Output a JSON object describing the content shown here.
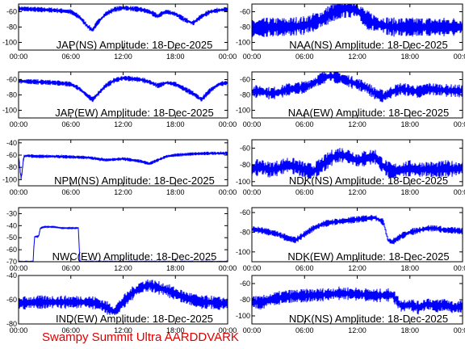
{
  "footer": "Swampy Summit Ultra AARDDVARK",
  "colors": {
    "trace": "#0000ff",
    "footer": "#e00000",
    "axis": "#000000"
  },
  "x_ticks": [
    "00:00",
    "06:00",
    "12:00",
    "18:00",
    "00:00"
  ],
  "chart_data": [
    {
      "type": "line",
      "title": "JAP(NS) Amplitude: 18-Dec-2025",
      "ylim": [
        -110,
        -50
      ],
      "yticks": [
        -60,
        -80,
        -100
      ],
      "series": [
        {
          "x_hours": [
            0,
            2,
            4,
            6,
            7,
            8,
            8.5,
            9,
            10,
            11,
            12,
            13,
            14,
            15,
            16,
            16.5,
            17,
            18,
            19,
            20,
            21,
            22,
            23,
            24
          ],
          "values": [
            -56,
            -57,
            -58,
            -60,
            -67,
            -80,
            -84,
            -75,
            -63,
            -57,
            -55,
            -56,
            -57,
            -60,
            -66,
            -62,
            -60,
            -63,
            -70,
            -75,
            -66,
            -60,
            -58,
            -57
          ]
        }
      ]
    },
    {
      "type": "line",
      "title": "NAA(NS) Amplitude: 18-Dec-2025",
      "ylim": [
        -110,
        -50
      ],
      "yticks": [
        -60,
        -80,
        -100
      ],
      "series": [
        {
          "x_hours": [
            0,
            2,
            4,
            6,
            8,
            9,
            10,
            11,
            12,
            13,
            14,
            15,
            16,
            17,
            18,
            20,
            22,
            24
          ],
          "values": [
            -82,
            -80,
            -80,
            -78,
            -70,
            -62,
            -57,
            -55,
            -58,
            -70,
            -75,
            -78,
            -80,
            -80,
            -80,
            -80,
            -80,
            -80
          ]
        }
      ]
    },
    {
      "type": "line",
      "title": "JAP(EW) Amplitude: 18-Dec-2025",
      "ylim": [
        -110,
        -50
      ],
      "yticks": [
        -60,
        -80,
        -100
      ],
      "series": [
        {
          "x_hours": [
            0,
            2,
            4,
            6,
            7,
            8,
            8.5,
            9,
            10,
            11,
            12,
            13,
            14,
            15,
            16,
            17,
            18,
            19,
            20,
            21,
            22,
            23,
            24
          ],
          "values": [
            -62,
            -63,
            -64,
            -66,
            -72,
            -82,
            -86,
            -80,
            -68,
            -61,
            -58,
            -59,
            -60,
            -63,
            -68,
            -64,
            -66,
            -72,
            -78,
            -86,
            -74,
            -66,
            -64
          ]
        }
      ]
    },
    {
      "type": "line",
      "title": "NAA(EW) Amplitude: 18-Dec-2025",
      "ylim": [
        -110,
        -50
      ],
      "yticks": [
        -60,
        -80,
        -100
      ],
      "series": [
        {
          "x_hours": [
            0,
            1,
            2,
            3,
            4,
            6,
            7,
            8,
            9,
            10,
            11,
            12,
            13,
            14,
            15,
            16,
            17,
            18,
            19,
            20,
            22,
            24
          ],
          "values": [
            -76,
            -75,
            -78,
            -77,
            -73,
            -70,
            -65,
            -58,
            -55,
            -58,
            -62,
            -66,
            -70,
            -78,
            -82,
            -76,
            -72,
            -74,
            -76,
            -72,
            -74,
            -75
          ]
        }
      ]
    },
    {
      "type": "line",
      "title": "NPM(NS) Amplitude: 18-Dec-2025",
      "ylim": [
        -110,
        -35
      ],
      "yticks": [
        -40,
        -60,
        -80,
        -100
      ],
      "series": [
        {
          "x_hours": [
            0,
            0.3,
            0.6,
            1,
            2,
            4,
            6,
            8,
            9,
            10,
            12,
            14,
            15,
            16,
            17,
            18,
            20,
            22,
            24
          ],
          "values": [
            -62,
            -100,
            -62,
            -61,
            -62,
            -62,
            -63,
            -64,
            -66,
            -68,
            -66,
            -70,
            -74,
            -68,
            -62,
            -60,
            -58,
            -57,
            -57
          ]
        }
      ]
    },
    {
      "type": "line",
      "title": "NDK(NS) Amplitude: 18-Dec-2025",
      "ylim": [
        -105,
        -50
      ],
      "yticks": [
        -60,
        -80,
        -100
      ],
      "series": [
        {
          "x_hours": [
            0,
            1,
            2,
            3,
            4,
            5,
            6,
            7,
            8,
            9,
            10,
            11,
            12,
            13,
            14,
            15,
            16,
            17,
            18,
            19,
            20,
            21,
            22,
            23,
            24
          ],
          "values": [
            -85,
            -82,
            -86,
            -84,
            -80,
            -82,
            -86,
            -88,
            -80,
            -72,
            -68,
            -70,
            -75,
            -72,
            -70,
            -82,
            -88,
            -86,
            -84,
            -86,
            -85,
            -86,
            -84,
            -85,
            -84
          ]
        }
      ]
    },
    {
      "type": "line",
      "title": "NWC(EW) Amplitude: 18-Dec-2025",
      "ylim": [
        -70,
        -25
      ],
      "yticks": [
        -30,
        -40,
        -50,
        -60,
        -70
      ],
      "series": [
        {
          "x_hours": [
            0,
            1.7,
            1.8,
            2.3,
            2.5,
            3,
            4,
            5,
            6,
            6.9,
            7,
            8,
            12,
            18,
            24
          ],
          "values": [
            -70,
            -70,
            -49,
            -49,
            -42,
            -41,
            -41,
            -42,
            -42,
            -42,
            -70,
            -70,
            -70,
            -70,
            -70
          ]
        }
      ]
    },
    {
      "type": "line",
      "title": "NDK(EW) Amplitude: 18-Dec-2025",
      "ylim": [
        -110,
        -55
      ],
      "yticks": [
        -60,
        -80,
        -100
      ],
      "series": [
        {
          "x_hours": [
            0,
            1,
            2,
            3,
            4,
            5,
            6,
            7,
            8,
            9,
            10,
            11,
            12,
            13,
            14,
            15,
            15.5,
            16,
            17,
            18,
            19,
            20,
            21,
            22,
            23,
            24
          ],
          "values": [
            -77,
            -78,
            -80,
            -82,
            -86,
            -88,
            -82,
            -76,
            -72,
            -70,
            -69,
            -68,
            -67,
            -66,
            -65,
            -70,
            -88,
            -90,
            -84,
            -80,
            -78,
            -76,
            -76,
            -78,
            -78,
            -79
          ]
        }
      ]
    },
    {
      "type": "line",
      "title": "IND(EW) Amplitude: 18-Dec-2025",
      "ylim": [
        -80,
        -40
      ],
      "yticks": [
        -40,
        -60,
        -80
      ],
      "series": [
        {
          "x_hours": [
            0,
            2,
            4,
            6,
            8,
            9,
            10,
            11,
            12,
            13,
            14,
            15,
            16,
            17,
            18,
            19,
            20,
            21,
            22,
            23,
            24
          ],
          "values": [
            -63,
            -62,
            -62,
            -62,
            -62,
            -63,
            -66,
            -70,
            -62,
            -55,
            -50,
            -48,
            -50,
            -52,
            -55,
            -58,
            -60,
            -62,
            -62,
            -63,
            -63
          ]
        }
      ]
    },
    {
      "type": "line",
      "title": "NDK(NS) Amplitude: 18-Dec-2025",
      "ylim": [
        -110,
        -50
      ],
      "yticks": [
        -60,
        -80,
        -100
      ],
      "series": [
        {
          "x_hours": [
            0,
            1,
            2,
            3,
            4,
            6,
            8,
            10,
            12,
            14,
            16,
            17,
            18,
            19,
            20,
            21,
            22,
            23,
            24
          ],
          "values": [
            -82,
            -84,
            -80,
            -78,
            -76,
            -75,
            -74,
            -72,
            -73,
            -75,
            -74,
            -88,
            -86,
            -90,
            -85,
            -88,
            -86,
            -90,
            -88
          ]
        }
      ]
    }
  ]
}
